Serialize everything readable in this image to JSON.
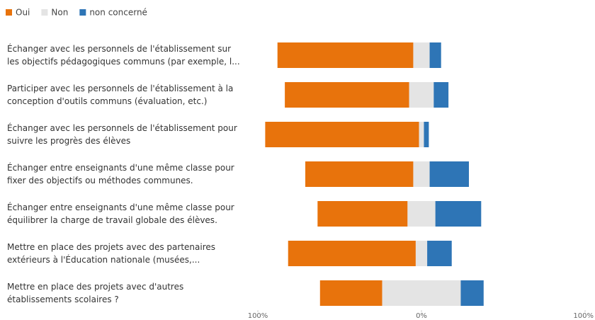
{
  "chart_data": {
    "type": "diverging_bar",
    "categories": [
      "Échanger avec les personnels de l'établissement sur\nles objectifs pédagogiques communs (par exemple, l...",
      "Participer avec les personnels de l'établissement à la\nconception d'outils communs (évaluation, etc.)",
      "Échanger avec les personnels de l'établissement pour\nsuivre les progrès des élèves",
      "Échanger entre enseignants d'une même classe pour\nfixer des objectifs ou méthodes communes.",
      "Échanger entre enseignants d'une même classe pour\néquilibrer la charge de travail globale des élèves.",
      "Mettre en place des projets avec des partenaires\nextérieurs à l'Éducation nationale (musées,...",
      "Mettre en place des projets avec d'autres\nétablissements scolaires ?"
    ],
    "series": [
      {
        "name": "Oui",
        "color": "#e8730c",
        "values": [
          83,
          76,
          94,
          66,
          55,
          78,
          38
        ]
      },
      {
        "name": "Non",
        "color": "#e4e4e4",
        "values": [
          10,
          15,
          3,
          10,
          17,
          7,
          48
        ]
      },
      {
        "name": "non concerné",
        "color": "#2e75b6",
        "values": [
          7,
          9,
          3,
          24,
          28,
          15,
          14
        ]
      }
    ],
    "xlim": [
      -100,
      100
    ],
    "xticks": [
      {
        "value": -100,
        "label": "100%"
      },
      {
        "value": 0,
        "label": "0%"
      },
      {
        "value": 100,
        "label": "100%"
      }
    ],
    "legend": "top-left"
  }
}
